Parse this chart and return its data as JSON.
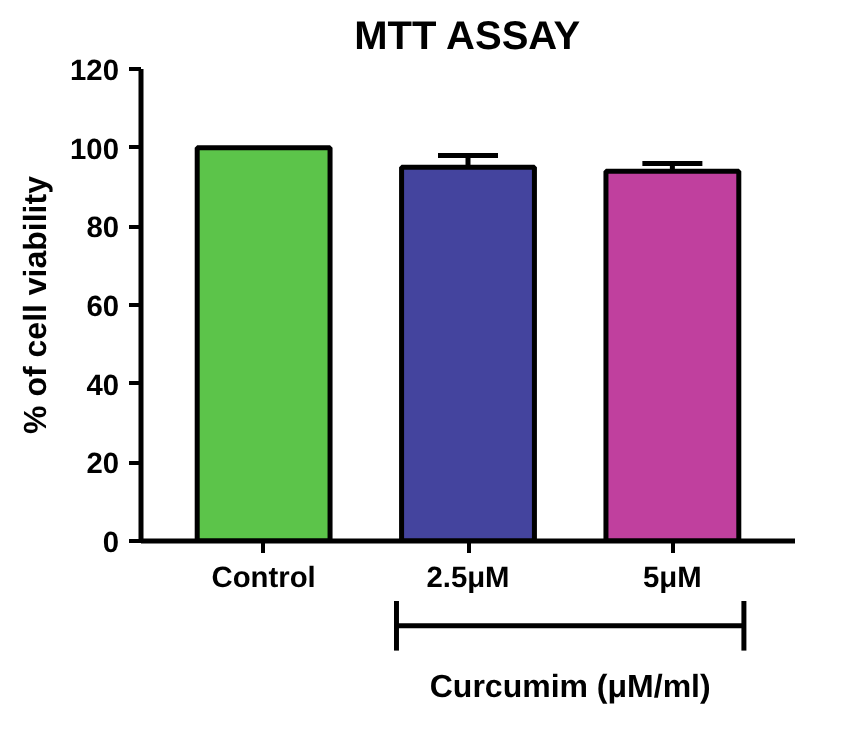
{
  "chart_data": {
    "type": "bar",
    "title": "MTT ASSAY",
    "ylabel": "% of cell viability",
    "categories": [
      "Control",
      "2.5μM",
      "5μM"
    ],
    "values": [
      100,
      95,
      94
    ],
    "errors": [
      null,
      3,
      2
    ],
    "colors": [
      "#5cc44a",
      "#44449e",
      "#c0409e"
    ],
    "ylim": [
      0,
      120
    ],
    "yticks": [
      0,
      20,
      40,
      60,
      80,
      100,
      120
    ],
    "grid": false,
    "annotations": [
      "Curcumim (μM/ml)"
    ]
  }
}
